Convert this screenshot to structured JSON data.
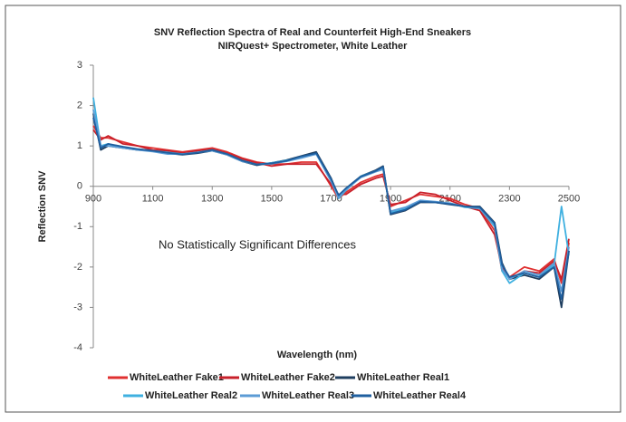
{
  "chart_data": {
    "type": "line",
    "title": "SNV Reflection Spectra of Real and Counterfeit High-End Sneakers",
    "subtitle": "NIRQuest+ Spectrometer, White Leather",
    "x_label": "Wavelength (nm)",
    "y_label": "Reflection SNV",
    "annotation": "No Statistically Significant Differences",
    "xlim": [
      900,
      2500
    ],
    "xticks": [
      900,
      1100,
      1300,
      1500,
      1700,
      1900,
      2100,
      2300,
      2500
    ],
    "ylim": [
      -4,
      3
    ],
    "yticks": [
      3,
      2,
      1,
      0,
      -1,
      -2,
      -3,
      -4
    ],
    "grid": false,
    "legend": "bottom",
    "x": [
      900,
      925,
      950,
      1000,
      1050,
      1100,
      1150,
      1200,
      1250,
      1300,
      1350,
      1400,
      1450,
      1500,
      1550,
      1600,
      1650,
      1700,
      1725,
      1750,
      1800,
      1850,
      1875,
      1900,
      1950,
      2000,
      2050,
      2100,
      2150,
      2200,
      2250,
      2275,
      2300,
      2350,
      2400,
      2450,
      2475,
      2500
    ],
    "series": [
      {
        "name": "WhiteLeather Fake1",
        "color": "#e03030",
        "values": [
          1.5,
          1.2,
          1.2,
          1.1,
          1.0,
          0.95,
          0.9,
          0.85,
          0.9,
          0.95,
          0.85,
          0.7,
          0.6,
          0.55,
          0.55,
          0.6,
          0.6,
          0.0,
          -0.3,
          -0.15,
          0.1,
          0.25,
          0.3,
          -0.5,
          -0.35,
          -0.2,
          -0.25,
          -0.3,
          -0.45,
          -0.55,
          -1.1,
          -2.1,
          -2.25,
          -2.0,
          -2.1,
          -1.8,
          -2.4,
          -1.4
        ]
      },
      {
        "name": "WhiteLeather Fake2",
        "color": "#c8202a",
        "values": [
          1.4,
          1.15,
          1.25,
          1.05,
          1.0,
          0.9,
          0.88,
          0.82,
          0.88,
          0.92,
          0.82,
          0.68,
          0.58,
          0.5,
          0.55,
          0.55,
          0.55,
          0.05,
          -0.2,
          -0.2,
          0.05,
          0.2,
          0.25,
          -0.45,
          -0.4,
          -0.15,
          -0.2,
          -0.35,
          -0.5,
          -0.6,
          -1.2,
          -2.0,
          -2.3,
          -2.1,
          -2.15,
          -1.85,
          -2.3,
          -1.3
        ]
      },
      {
        "name": "WhiteLeather Real1",
        "color": "#1f3e5f",
        "values": [
          1.8,
          0.9,
          1.0,
          0.95,
          0.9,
          0.88,
          0.82,
          0.78,
          0.82,
          0.88,
          0.78,
          0.62,
          0.52,
          0.58,
          0.65,
          0.75,
          0.85,
          0.2,
          -0.25,
          -0.05,
          0.25,
          0.4,
          0.5,
          -0.7,
          -0.6,
          -0.4,
          -0.4,
          -0.45,
          -0.5,
          -0.5,
          -0.9,
          -1.9,
          -2.3,
          -2.2,
          -2.3,
          -2.0,
          -3.0,
          -1.6
        ]
      },
      {
        "name": "WhiteLeather Real2",
        "color": "#3fb0e0",
        "values": [
          2.2,
          1.0,
          1.05,
          0.95,
          0.92,
          0.88,
          0.84,
          0.8,
          0.84,
          0.9,
          0.8,
          0.64,
          0.54,
          0.58,
          0.64,
          0.72,
          0.8,
          0.15,
          -0.3,
          -0.1,
          0.25,
          0.38,
          0.45,
          -0.65,
          -0.55,
          -0.35,
          -0.4,
          -0.42,
          -0.52,
          -0.55,
          -1.0,
          -2.1,
          -2.4,
          -2.15,
          -2.25,
          -1.95,
          -0.5,
          -1.7
        ]
      },
      {
        "name": "WhiteLeather Real3",
        "color": "#5b9bd5",
        "values": [
          1.9,
          1.0,
          1.0,
          0.95,
          0.9,
          0.86,
          0.8,
          0.8,
          0.84,
          0.88,
          0.78,
          0.62,
          0.54,
          0.56,
          0.62,
          0.7,
          0.8,
          0.12,
          -0.28,
          -0.08,
          0.22,
          0.36,
          0.42,
          -0.62,
          -0.52,
          -0.35,
          -0.38,
          -0.42,
          -0.5,
          -0.55,
          -0.95,
          -2.05,
          -2.3,
          -2.1,
          -2.2,
          -1.9,
          -2.6,
          -1.5
        ]
      },
      {
        "name": "WhiteLeather Real4",
        "color": "#1f5f9f",
        "values": [
          1.7,
          0.95,
          1.05,
          0.98,
          0.92,
          0.88,
          0.83,
          0.79,
          0.83,
          0.9,
          0.8,
          0.64,
          0.54,
          0.57,
          0.63,
          0.74,
          0.82,
          0.18,
          -0.22,
          -0.05,
          0.24,
          0.38,
          0.48,
          -0.68,
          -0.58,
          -0.38,
          -0.4,
          -0.44,
          -0.5,
          -0.52,
          -0.92,
          -1.95,
          -2.25,
          -2.15,
          -2.25,
          -2.0,
          -2.8,
          -1.6
        ]
      }
    ]
  }
}
